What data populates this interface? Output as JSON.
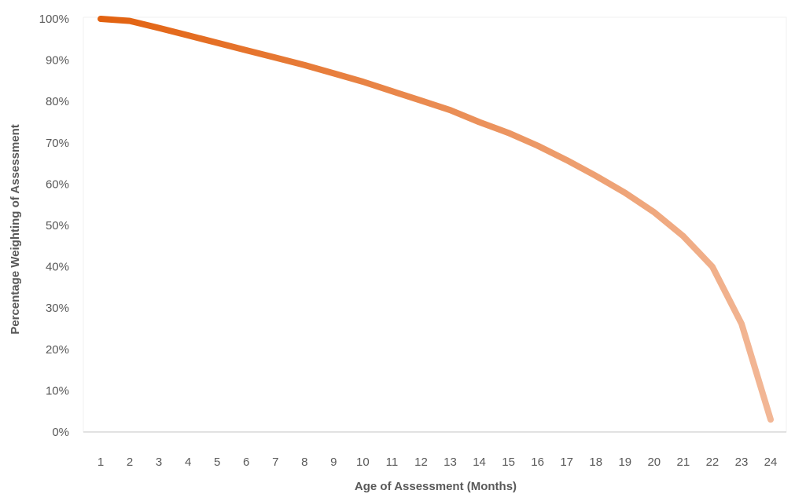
{
  "chart_data": {
    "type": "line",
    "title": "",
    "xlabel": "Age of Assessment (Months)",
    "ylabel": "Percentage Weighting  of Assessment",
    "categories": [
      "1",
      "2",
      "3",
      "4",
      "5",
      "6",
      "7",
      "8",
      "9",
      "10",
      "11",
      "12",
      "13",
      "14",
      "15",
      "16",
      "17",
      "18",
      "19",
      "20",
      "21",
      "22",
      "23",
      "24"
    ],
    "series": [
      {
        "values": [
          100,
          99.5,
          97.8,
          96,
          94.2,
          92.4,
          90.6,
          88.8,
          86.8,
          84.8,
          82.5,
          80.2,
          77.9,
          75,
          72.4,
          69.3,
          65.8,
          62,
          57.9,
          53.2,
          47.4,
          40,
          26.2,
          3
        ],
        "gradient": [
          "#e2610f",
          "#f2b796"
        ]
      }
    ],
    "y_ticks": [
      "0%",
      "10%",
      "20%",
      "30%",
      "40%",
      "50%",
      "60%",
      "70%",
      "80%",
      "90%",
      "100%"
    ],
    "ylim": [
      0,
      100
    ],
    "grid": false,
    "legend": "none",
    "colors": {
      "axis_line": "#d9d9d9",
      "tick_text": "#595959"
    }
  }
}
